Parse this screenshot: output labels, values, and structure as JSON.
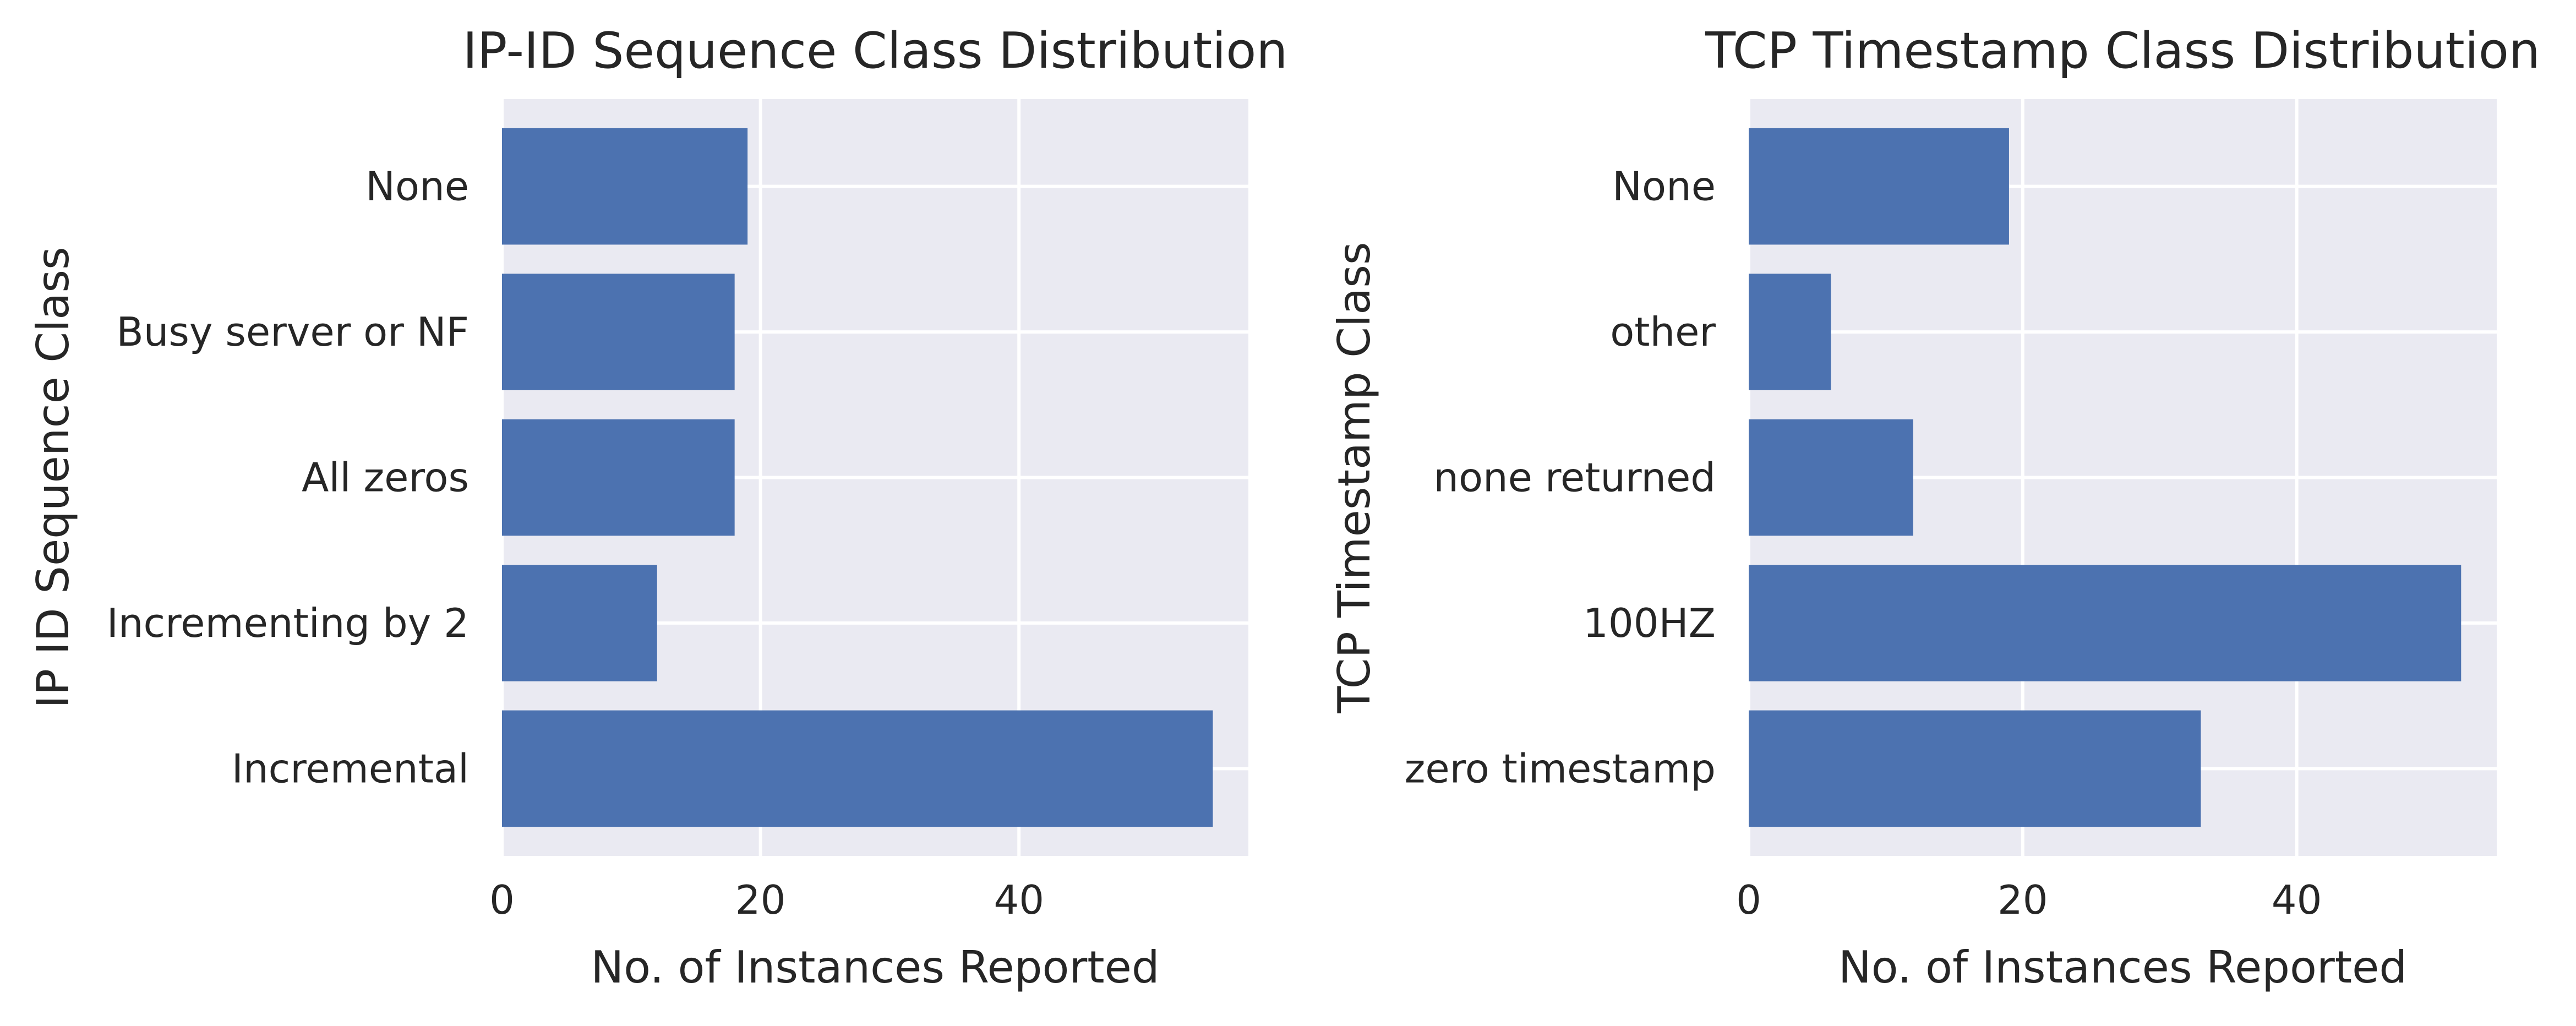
{
  "chart_data": [
    {
      "type": "bar",
      "orientation": "horizontal",
      "title": "IP-ID Sequence Class Distribution",
      "xlabel": "No. of Instances Reported",
      "ylabel": "IP ID Sequence Class",
      "categories": [
        "Incremental",
        "Incrementing by 2",
        "All zeros",
        "Busy server or NF",
        "None"
      ],
      "values": [
        55,
        12,
        18,
        18,
        19
      ],
      "xlim": [
        0,
        57.75
      ],
      "xticks": [
        0,
        20,
        40
      ],
      "grid": true,
      "bar_color": "#4c72b0",
      "background_color": "#eaeaf2"
    },
    {
      "type": "bar",
      "orientation": "horizontal",
      "title": "TCP Timestamp Class Distribution",
      "xlabel": "No. of Instances Reported",
      "ylabel": "TCP Timestamp Class",
      "categories": [
        "zero timestamp",
        "100HZ",
        "none returned",
        "other",
        "None"
      ],
      "values": [
        33,
        52,
        12,
        6,
        19
      ],
      "xlim": [
        0,
        54.6
      ],
      "xticks": [
        0,
        20,
        40
      ],
      "grid": true,
      "bar_color": "#4c72b0",
      "background_color": "#eaeaf2"
    }
  ]
}
